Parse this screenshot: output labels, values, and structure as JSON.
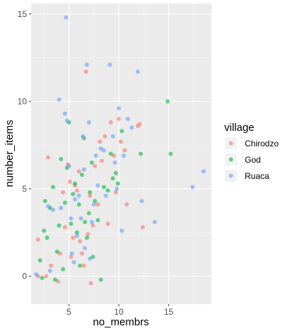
{
  "chart_data": {
    "type": "scatter",
    "xlabel": "no_membrs",
    "ylabel": "number_items",
    "xlim": [
      1.2,
      19.3
    ],
    "ylim": [
      -1.6,
      15.6
    ],
    "x_ticks": [
      5,
      10,
      15
    ],
    "y_ticks": [
      0,
      5,
      10,
      15
    ],
    "x_tick_labels": [
      "5",
      "10",
      "15"
    ],
    "y_tick_labels": [
      "0",
      "5",
      "10",
      "15"
    ],
    "grid": true,
    "legend": {
      "title": "village",
      "position": "right"
    },
    "point_opacity": 0.6,
    "series": [
      {
        "name": "Chirodzo",
        "color": "#F8766D",
        "points": [
          [
            1.9,
            0.0
          ],
          [
            1.9,
            2.1
          ],
          [
            2.7,
            0.0
          ],
          [
            2.9,
            6.8
          ],
          [
            3.2,
            0.6
          ],
          [
            3.9,
            -0.3
          ],
          [
            4.1,
            1.3
          ],
          [
            4.4,
            4.8
          ],
          [
            4.6,
            2.8
          ],
          [
            4.9,
            6.4
          ],
          [
            5.1,
            5.4
          ],
          [
            5.2,
            1.1
          ],
          [
            5.4,
            2.2
          ],
          [
            5.6,
            5.2
          ],
          [
            5.8,
            4.9
          ],
          [
            6.0,
            6.0
          ],
          [
            6.1,
            2.0
          ],
          [
            6.3,
            1.3
          ],
          [
            6.5,
            0.6
          ],
          [
            6.7,
            11.7
          ],
          [
            6.9,
            2.4
          ],
          [
            7.1,
            4.6
          ],
          [
            7.2,
            -0.4
          ],
          [
            7.4,
            2.9
          ],
          [
            7.6,
            6.3
          ],
          [
            7.9,
            4.1
          ],
          [
            8.1,
            7.7
          ],
          [
            8.3,
            6.6
          ],
          [
            8.6,
            8.0
          ],
          [
            8.9,
            3.0
          ],
          [
            9.2,
            8.8
          ],
          [
            9.5,
            6.9
          ],
          [
            9.7,
            4.8
          ],
          [
            10.0,
            9.0
          ],
          [
            10.2,
            7.7
          ],
          [
            10.6,
            7.2
          ],
          [
            10.8,
            4.1
          ],
          [
            11.9,
            8.6
          ],
          [
            12.1,
            8.7
          ],
          [
            12.4,
            2.8
          ]
        ]
      },
      {
        "name": "God",
        "color": "#00BA38",
        "points": [
          [
            2.1,
            0.9
          ],
          [
            2.3,
            -0.1
          ],
          [
            2.5,
            2.6
          ],
          [
            2.6,
            4.3
          ],
          [
            2.8,
            2.2
          ],
          [
            3.1,
            3.9
          ],
          [
            3.4,
            5.1
          ],
          [
            3.6,
            -0.2
          ],
          [
            3.8,
            1.4
          ],
          [
            4.0,
            2.9
          ],
          [
            4.2,
            6.7
          ],
          [
            4.4,
            0.4
          ],
          [
            4.6,
            4.2
          ],
          [
            4.8,
            6.2
          ],
          [
            5.0,
            8.8
          ],
          [
            5.2,
            3.0
          ],
          [
            5.4,
            4.7
          ],
          [
            5.6,
            5.3
          ],
          [
            5.8,
            2.5
          ],
          [
            6.0,
            4.1
          ],
          [
            6.1,
            0.6
          ],
          [
            6.3,
            5.8
          ],
          [
            6.5,
            7.9
          ],
          [
            6.6,
            3.1
          ],
          [
            6.8,
            2.2
          ],
          [
            7.0,
            3.6
          ],
          [
            7.1,
            4.8
          ],
          [
            7.3,
            6.5
          ],
          [
            7.4,
            1.1
          ],
          [
            7.6,
            4.3
          ],
          [
            7.9,
            3.2
          ],
          [
            8.2,
            -0.2
          ],
          [
            8.5,
            5.1
          ],
          [
            8.9,
            4.9
          ],
          [
            9.2,
            7.0
          ],
          [
            9.4,
            5.6
          ],
          [
            9.7,
            5.9
          ],
          [
            9.9,
            5.3
          ],
          [
            10.3,
            8.3
          ],
          [
            12.2,
            7.0
          ],
          [
            14.9,
            10.0
          ],
          [
            15.2,
            7.0
          ]
        ]
      },
      {
        "name": "Ruaca",
        "color": "#619CFF",
        "points": [
          [
            1.7,
            0.1
          ],
          [
            2.9,
            4.0
          ],
          [
            3.1,
            0.3
          ],
          [
            3.4,
            3.8
          ],
          [
            4.0,
            10.1
          ],
          [
            4.2,
            3.9
          ],
          [
            4.6,
            9.3
          ],
          [
            4.7,
            14.8
          ],
          [
            4.8,
            8.9
          ],
          [
            5.0,
            6.3
          ],
          [
            5.2,
            3.3
          ],
          [
            5.3,
            1.3
          ],
          [
            5.5,
            0.8
          ],
          [
            5.6,
            4.4
          ],
          [
            5.8,
            2.3
          ],
          [
            6.0,
            4.6
          ],
          [
            6.2,
            3.3
          ],
          [
            6.4,
            8.0
          ],
          [
            6.5,
            6.1
          ],
          [
            6.6,
            1.6
          ],
          [
            6.8,
            12.1
          ],
          [
            7.0,
            8.8
          ],
          [
            7.1,
            1.0
          ],
          [
            7.3,
            3.1
          ],
          [
            7.5,
            4.1
          ],
          [
            7.7,
            6.9
          ],
          [
            7.9,
            5.2
          ],
          [
            8.2,
            7.3
          ],
          [
            8.5,
            7.2
          ],
          [
            8.7,
            4.6
          ],
          [
            9.1,
            12.1
          ],
          [
            9.4,
            8.0
          ],
          [
            9.6,
            6.5
          ],
          [
            9.8,
            5.0
          ],
          [
            10.0,
            9.6
          ],
          [
            10.3,
            2.6
          ],
          [
            10.5,
            6.9
          ],
          [
            10.9,
            9.0
          ],
          [
            11.3,
            8.5
          ],
          [
            11.9,
            11.7
          ],
          [
            12.3,
            4.3
          ],
          [
            13.6,
            3.1
          ],
          [
            17.4,
            5.1
          ],
          [
            18.5,
            6.0
          ]
        ]
      }
    ]
  }
}
